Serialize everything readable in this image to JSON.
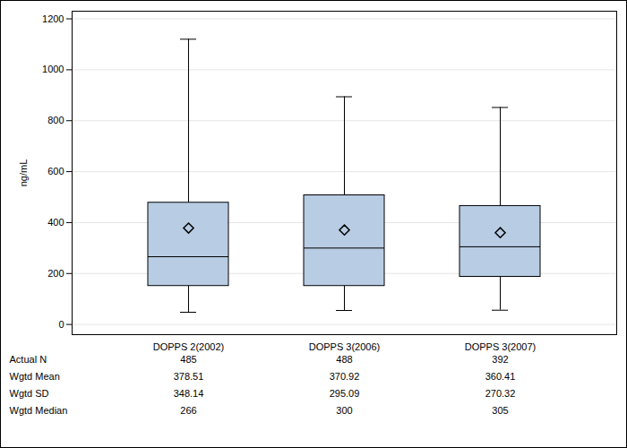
{
  "chart_data": {
    "type": "box",
    "y_label": "ng/mL",
    "categories": [
      "DOPPS 2(2002)",
      "DOPPS 3(2006)",
      "DOPPS 3(2007)"
    ],
    "whisker_low": [
      48,
      55,
      56
    ],
    "q1": [
      151,
      151,
      187
    ],
    "median": [
      266,
      300,
      305
    ],
    "q3": [
      478,
      507,
      465
    ],
    "whisker_high": [
      1120,
      894,
      852
    ],
    "mean": [
      378.51,
      370.92,
      360.41
    ],
    "color": "#b8cce4",
    "marker": "diamond",
    "ylim": [
      -40,
      1230
    ],
    "yticks": [
      0,
      200,
      400,
      600,
      800,
      1000,
      1200
    ],
    "grid": true,
    "table_rows": [
      {
        "label": "Actual N",
        "values": [
          485,
          488,
          392
        ]
      },
      {
        "label": "Wgtd Mean",
        "values": [
          378.51,
          370.92,
          360.41
        ]
      },
      {
        "label": "Wgtd SD",
        "values": [
          348.14,
          295.09,
          270.32
        ]
      },
      {
        "label": "Wgtd Median",
        "values": [
          266,
          300,
          305
        ]
      }
    ]
  }
}
